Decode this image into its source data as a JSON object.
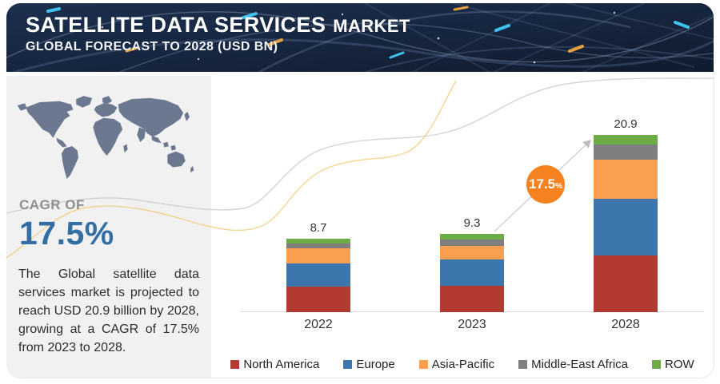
{
  "header": {
    "title_main": "SATELLITE DATA SERVICES",
    "title_suffix": "MARKET",
    "subtitle": "GLOBAL FORECAST TO 2028 (USD BN)",
    "bg_color": "#16253e"
  },
  "sidebar": {
    "cagr_label": "CAGR OF",
    "cagr_value": "17.5%",
    "cagr_value_color": "#336fa4",
    "description": "The Global satellite data services market is projected to reach USD 20.9 billion by 2028, growing at a CAGR of 17.5% from 2023 to 2028.",
    "map_color": "#6b7890"
  },
  "chart_data": {
    "type": "bar",
    "stacked": true,
    "title": "Satellite Data Services Market, USD BN",
    "xlabel": "",
    "ylabel": "USD BN",
    "grid": false,
    "legend_position": "bottom",
    "categories": [
      "2022",
      "2023",
      "2028"
    ],
    "totals": [
      8.7,
      9.3,
      20.9
    ],
    "series": [
      {
        "name": "North America",
        "color": "#b33a31",
        "values": [
          3.0,
          3.1,
          6.7
        ]
      },
      {
        "name": "Europe",
        "color": "#3c76ad",
        "values": [
          2.7,
          3.1,
          6.7
        ]
      },
      {
        "name": "Asia-Pacific",
        "color": "#f99f4f",
        "values": [
          1.8,
          1.6,
          4.6
        ]
      },
      {
        "name": "Middle-East Africa",
        "color": "#7f7f7f",
        "values": [
          0.6,
          0.8,
          1.8
        ]
      },
      {
        "name": "ROW",
        "color": "#6dab47",
        "values": [
          0.6,
          0.7,
          1.1
        ]
      }
    ],
    "annotation": {
      "cagr_big": "17.5",
      "cagr_small": "%",
      "circle_color": "#f5821f"
    }
  }
}
